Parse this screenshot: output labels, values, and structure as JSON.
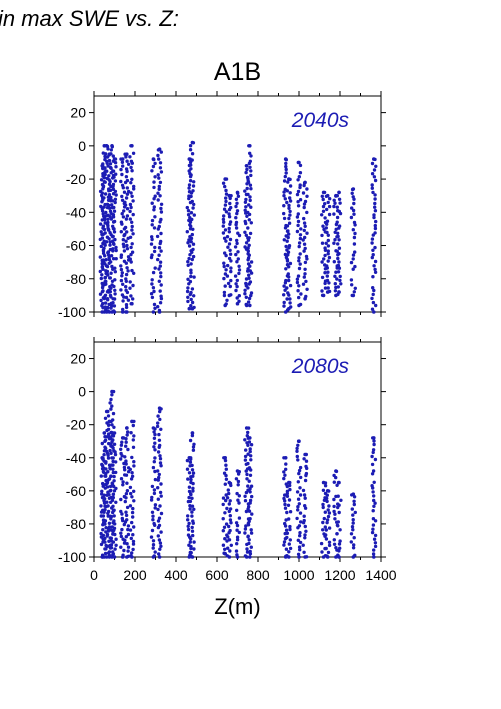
{
  "heading": "in max SWE vs. Z:",
  "scenario": "A1B",
  "chart_data": [
    {
      "type": "scatter",
      "panel_label": "2040s",
      "xlabel": "Z(m)",
      "ylabel": "",
      "xlim": [
        0,
        1400
      ],
      "ylim": [
        -100,
        30
      ],
      "x_ticks": [
        0,
        200,
        400,
        600,
        800,
        1000,
        1200,
        1400
      ],
      "y_ticks": [
        20,
        0,
        -20,
        -40,
        -60,
        -80,
        -100
      ],
      "point_color": "#1c1cb4",
      "columns": [
        {
          "x": 40,
          "y_max": -12,
          "y_min": -100
        },
        {
          "x": 50,
          "y_max": 0,
          "y_min": -100
        },
        {
          "x": 62,
          "y_max": 0,
          "y_min": -100
        },
        {
          "x": 75,
          "y_max": -5,
          "y_min": -100
        },
        {
          "x": 88,
          "y_max": 0,
          "y_min": -100
        },
        {
          "x": 100,
          "y_max": -8,
          "y_min": -100
        },
        {
          "x": 140,
          "y_max": -8,
          "y_min": -100
        },
        {
          "x": 160,
          "y_max": -5,
          "y_min": -100
        },
        {
          "x": 185,
          "y_max": 0,
          "y_min": -95
        },
        {
          "x": 290,
          "y_max": -8,
          "y_min": -100
        },
        {
          "x": 320,
          "y_max": -2,
          "y_min": -100
        },
        {
          "x": 465,
          "y_max": -8,
          "y_min": -98
        },
        {
          "x": 480,
          "y_max": 2,
          "y_min": -98
        },
        {
          "x": 640,
          "y_max": -20,
          "y_min": -96
        },
        {
          "x": 660,
          "y_max": -30,
          "y_min": -90
        },
        {
          "x": 700,
          "y_max": -28,
          "y_min": -95
        },
        {
          "x": 745,
          "y_max": -12,
          "y_min": -96
        },
        {
          "x": 760,
          "y_max": 0,
          "y_min": -96
        },
        {
          "x": 935,
          "y_max": -8,
          "y_min": -100
        },
        {
          "x": 950,
          "y_max": -20,
          "y_min": -98
        },
        {
          "x": 1000,
          "y_max": -10,
          "y_min": -96
        },
        {
          "x": 1030,
          "y_max": -22,
          "y_min": -92
        },
        {
          "x": 1120,
          "y_max": -28,
          "y_min": -90
        },
        {
          "x": 1140,
          "y_max": -30,
          "y_min": -88
        },
        {
          "x": 1180,
          "y_max": -30,
          "y_min": -90
        },
        {
          "x": 1195,
          "y_max": -28,
          "y_min": -88
        },
        {
          "x": 1265,
          "y_max": -26,
          "y_min": -90
        },
        {
          "x": 1365,
          "y_max": -8,
          "y_min": -100
        }
      ]
    },
    {
      "type": "scatter",
      "panel_label": "2080s",
      "xlabel": "Z(m)",
      "ylabel": "",
      "xlim": [
        0,
        1400
      ],
      "ylim": [
        -100,
        30
      ],
      "x_ticks": [
        0,
        200,
        400,
        600,
        800,
        1000,
        1200,
        1400
      ],
      "y_ticks": [
        20,
        0,
        -20,
        -40,
        -60,
        -80,
        -100
      ],
      "point_color": "#1c1cb4",
      "columns": [
        {
          "x": 40,
          "y_max": -40,
          "y_min": -100
        },
        {
          "x": 50,
          "y_max": -25,
          "y_min": -100
        },
        {
          "x": 62,
          "y_max": -12,
          "y_min": -100
        },
        {
          "x": 75,
          "y_max": -18,
          "y_min": -100
        },
        {
          "x": 88,
          "y_max": 0,
          "y_min": -100
        },
        {
          "x": 100,
          "y_max": -25,
          "y_min": -100
        },
        {
          "x": 140,
          "y_max": -28,
          "y_min": -100
        },
        {
          "x": 160,
          "y_max": -22,
          "y_min": -100
        },
        {
          "x": 185,
          "y_max": -18,
          "y_min": -100
        },
        {
          "x": 290,
          "y_max": -22,
          "y_min": -100
        },
        {
          "x": 320,
          "y_max": -10,
          "y_min": -100
        },
        {
          "x": 465,
          "y_max": -40,
          "y_min": -100
        },
        {
          "x": 480,
          "y_max": -25,
          "y_min": -100
        },
        {
          "x": 640,
          "y_max": -40,
          "y_min": -98
        },
        {
          "x": 660,
          "y_max": -55,
          "y_min": -100
        },
        {
          "x": 700,
          "y_max": -48,
          "y_min": -100
        },
        {
          "x": 745,
          "y_max": -22,
          "y_min": -100
        },
        {
          "x": 760,
          "y_max": -28,
          "y_min": -100
        },
        {
          "x": 935,
          "y_max": -40,
          "y_min": -100
        },
        {
          "x": 950,
          "y_max": -55,
          "y_min": -100
        },
        {
          "x": 1000,
          "y_max": -30,
          "y_min": -100
        },
        {
          "x": 1030,
          "y_max": -38,
          "y_min": -100
        },
        {
          "x": 1120,
          "y_max": -55,
          "y_min": -100
        },
        {
          "x": 1140,
          "y_max": -60,
          "y_min": -100
        },
        {
          "x": 1180,
          "y_max": -48,
          "y_min": -100
        },
        {
          "x": 1195,
          "y_max": -55,
          "y_min": -100
        },
        {
          "x": 1265,
          "y_max": -62,
          "y_min": -100
        },
        {
          "x": 1365,
          "y_max": -28,
          "y_min": -100
        }
      ]
    }
  ]
}
